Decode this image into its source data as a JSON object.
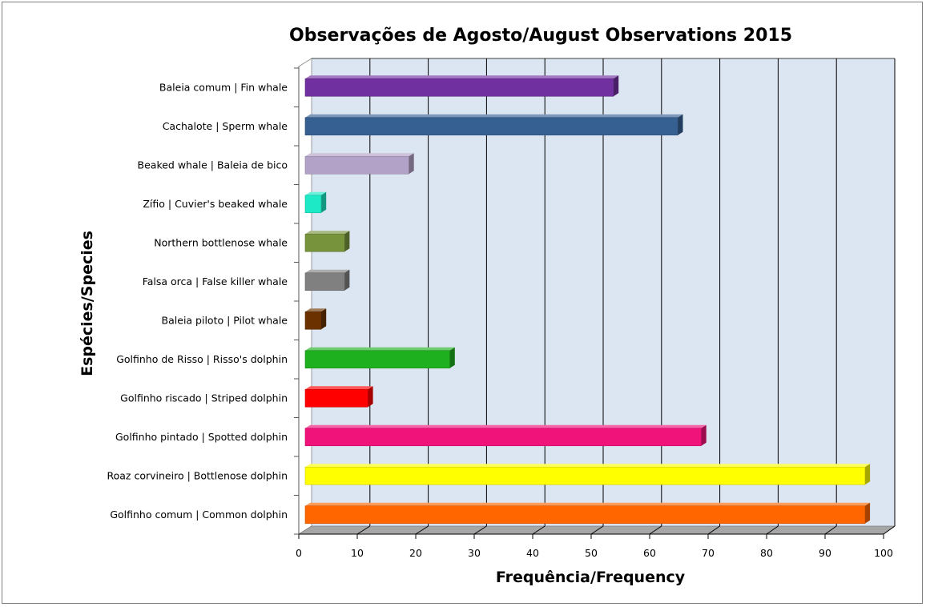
{
  "chart_data": {
    "type": "bar",
    "orientation": "horizontal",
    "style": "3d",
    "title": "Observações de Agosto/August Observations 2015",
    "xlabel": "Frequência/Frequency",
    "ylabel": "Espécies/Species",
    "xlim": [
      0,
      100
    ],
    "x_ticks": [
      0,
      10,
      20,
      30,
      40,
      50,
      60,
      70,
      80,
      90,
      100
    ],
    "grid": true,
    "legend": "none",
    "categories": [
      "Baleia comum | Fin whale",
      "Cachalote | Sperm whale",
      "Beaked whale | Baleia de bico",
      "Zífio | Cuvier's beaked whale",
      "Northern bottlenose whale",
      "Falsa orca | False killer whale",
      "Baleia piloto | Pilot whale",
      "Golfinho de Risso | Risso's dolphin",
      "Golfinho riscado | Striped dolphin",
      "Golfinho pintado | Spotted dolphin",
      "Roaz corvineiro | Bottlenose dolphin",
      "Golfinho comum | Common dolphin"
    ],
    "values": [
      53,
      64,
      18,
      3,
      7,
      7,
      3,
      25,
      11,
      68,
      96,
      96
    ],
    "colors": [
      "#7030a0",
      "#376092",
      "#b3a2c7",
      "#1de9c6",
      "#77933c",
      "#808080",
      "#6b3200",
      "#1fb01f",
      "#ff0000",
      "#f0137a",
      "#ffff00",
      "#ff6600"
    ]
  }
}
